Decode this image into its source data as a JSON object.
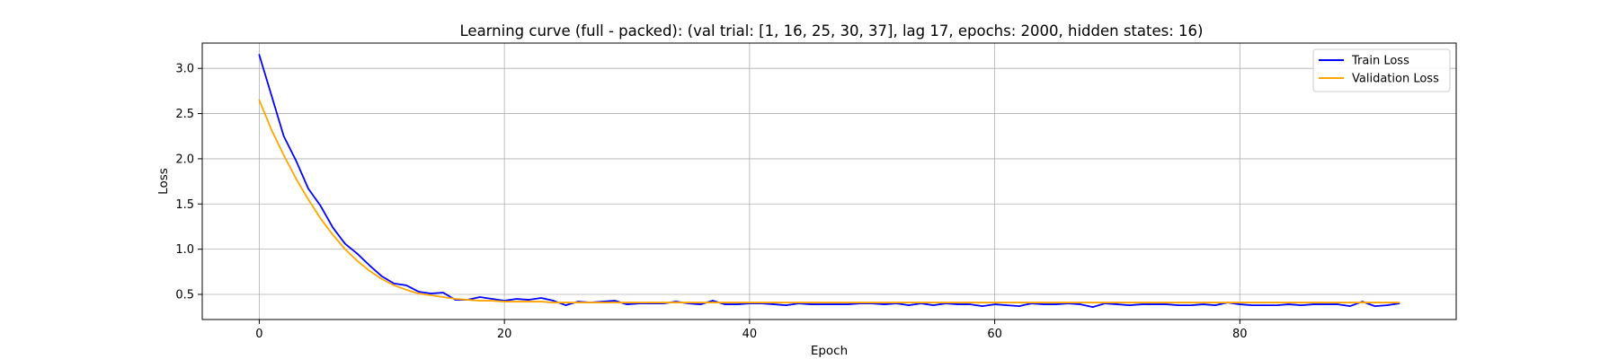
{
  "chart_data": {
    "type": "line",
    "title": "Learning curve (full - packed): (val trial: [1, 16, 25, 30, 37], lag 17, epochs: 2000, hidden states: 16)",
    "xlabel": "Epoch",
    "ylabel": "Loss",
    "xlim": [
      -4.65,
      97.65
    ],
    "ylim": [
      0.222,
      3.28
    ],
    "xticks": [
      0,
      20,
      40,
      60,
      80
    ],
    "yticks": [
      0.5,
      1.0,
      1.5,
      2.0,
      2.5,
      3.0
    ],
    "ytick_labels": [
      "0.5",
      "1.0",
      "1.5",
      "2.0",
      "2.5",
      "3.0"
    ],
    "grid": true,
    "legend": "top-right",
    "series": [
      {
        "name": "Train Loss",
        "color": "#0000ff",
        "values": [
          3.15,
          2.7,
          2.25,
          1.98,
          1.67,
          1.48,
          1.24,
          1.06,
          0.95,
          0.82,
          0.7,
          0.62,
          0.6,
          0.53,
          0.51,
          0.52,
          0.44,
          0.44,
          0.47,
          0.45,
          0.43,
          0.45,
          0.44,
          0.46,
          0.43,
          0.38,
          0.42,
          0.41,
          0.42,
          0.43,
          0.39,
          0.4,
          0.4,
          0.4,
          0.42,
          0.4,
          0.39,
          0.43,
          0.39,
          0.39,
          0.4,
          0.4,
          0.39,
          0.38,
          0.4,
          0.39,
          0.39,
          0.39,
          0.39,
          0.4,
          0.4,
          0.39,
          0.4,
          0.38,
          0.4,
          0.38,
          0.4,
          0.39,
          0.39,
          0.37,
          0.39,
          0.38,
          0.37,
          0.4,
          0.39,
          0.39,
          0.4,
          0.39,
          0.36,
          0.4,
          0.39,
          0.38,
          0.39,
          0.39,
          0.39,
          0.38,
          0.38,
          0.39,
          0.38,
          0.41,
          0.39,
          0.38,
          0.38,
          0.38,
          0.39,
          0.38,
          0.39,
          0.39,
          0.39,
          0.37,
          0.42,
          0.37,
          0.38,
          0.4
        ]
      },
      {
        "name": "Validation Loss",
        "color": "#ffa500",
        "values": [
          2.65,
          2.32,
          2.04,
          1.78,
          1.55,
          1.34,
          1.16,
          1.0,
          0.87,
          0.76,
          0.67,
          0.6,
          0.55,
          0.51,
          0.49,
          0.47,
          0.45,
          0.44,
          0.43,
          0.43,
          0.42,
          0.42,
          0.42,
          0.42,
          0.41,
          0.41,
          0.41,
          0.41,
          0.41,
          0.41,
          0.41,
          0.41,
          0.41,
          0.41,
          0.41,
          0.41,
          0.41,
          0.41,
          0.41,
          0.41,
          0.41,
          0.41,
          0.41,
          0.41,
          0.41,
          0.41,
          0.41,
          0.41,
          0.41,
          0.41,
          0.41,
          0.41,
          0.41,
          0.41,
          0.41,
          0.41,
          0.41,
          0.41,
          0.41,
          0.41,
          0.41,
          0.41,
          0.41,
          0.41,
          0.41,
          0.41,
          0.41,
          0.41,
          0.41,
          0.41,
          0.41,
          0.41,
          0.41,
          0.41,
          0.41,
          0.41,
          0.41,
          0.41,
          0.41,
          0.41,
          0.41,
          0.41,
          0.41,
          0.41,
          0.41,
          0.41,
          0.41,
          0.41,
          0.41,
          0.41,
          0.41,
          0.41,
          0.41,
          0.41
        ]
      }
    ]
  }
}
